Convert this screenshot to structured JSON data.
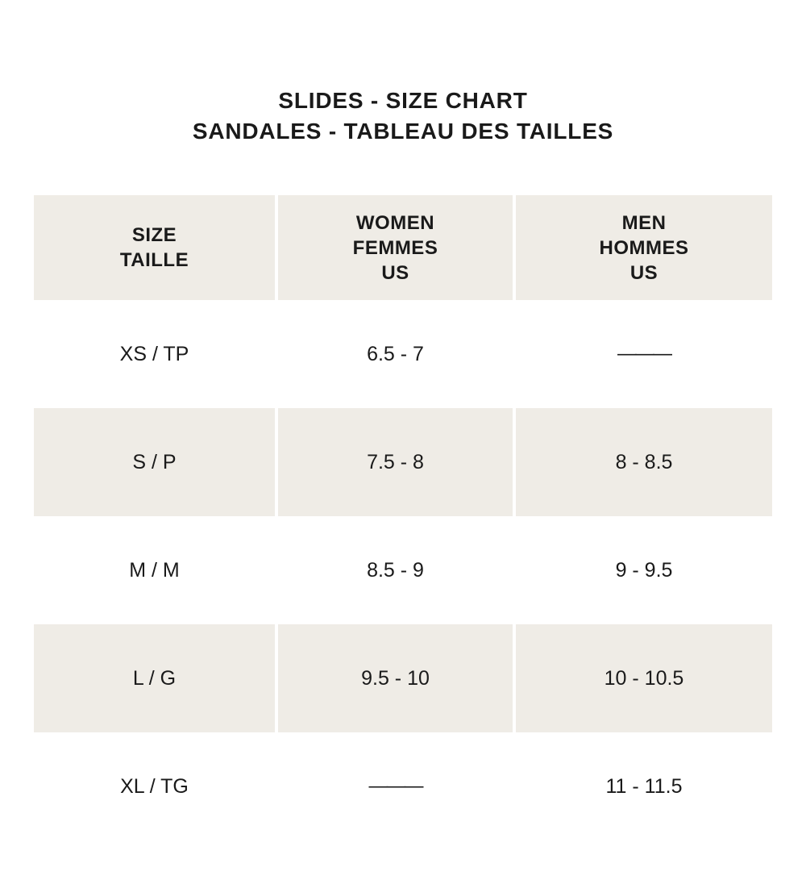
{
  "title": {
    "line1": "SLIDES - SIZE CHART",
    "line2": "SANDALES - TABLEAU DES TAILLES"
  },
  "colors": {
    "row_background": "#efece6",
    "text": "#1a1a1a"
  },
  "table": {
    "headers": [
      {
        "label": "SIZE\nTAILLE"
      },
      {
        "label": "WOMEN\nFEMMES\nUS"
      },
      {
        "label": "MEN\nHOMMES\nUS"
      }
    ],
    "no_size_marker": "———",
    "rows": [
      {
        "size": "XS / TP",
        "women": "6.5 - 7",
        "men": "———"
      },
      {
        "size": "S / P",
        "women": "7.5 - 8",
        "men": "8 - 8.5"
      },
      {
        "size": "M / M",
        "women": "8.5 - 9",
        "men": "9 - 9.5"
      },
      {
        "size": "L / G",
        "women": "9.5 - 10",
        "men": "10 - 10.5"
      },
      {
        "size": "XL / TG",
        "women": "———",
        "men": "11 - 11.5"
      }
    ]
  }
}
